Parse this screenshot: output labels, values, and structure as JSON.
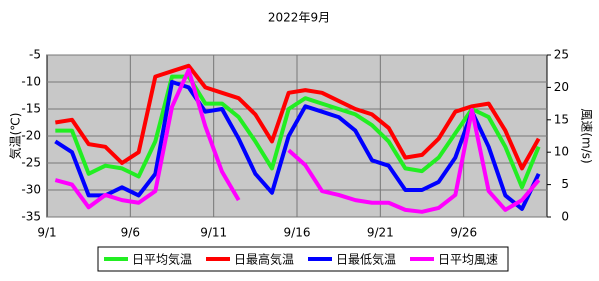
{
  "chart_data": {
    "type": "line",
    "title": "2022年9月",
    "y_label": "気温(℃)",
    "y2_label": "風速(m/s)",
    "categories": [
      "9/1",
      null,
      null,
      null,
      null,
      "9/6",
      null,
      null,
      null,
      null,
      "9/11",
      null,
      null,
      null,
      null,
      "9/16",
      null,
      null,
      null,
      null,
      "9/21",
      null,
      null,
      null,
      null,
      "9/26",
      null,
      null,
      null,
      null
    ],
    "ylim": [
      -35,
      -5
    ],
    "yticks": [
      -35,
      -30,
      -25,
      -20,
      -15,
      -10,
      -5
    ],
    "y2lim": [
      0,
      25
    ],
    "y2ticks": [
      0,
      5,
      10,
      15,
      20,
      25
    ],
    "grid": true,
    "series": [
      {
        "name": "日平均気温",
        "color": "#22ee22",
        "values": [
          -19,
          -19,
          -27,
          -25.5,
          -26,
          -27.5,
          -21,
          -9,
          -9,
          -14,
          -14,
          -16.5,
          -21,
          -26,
          -15,
          -13,
          -14,
          -15,
          -16,
          -18,
          -21,
          -26,
          -26.5,
          -24,
          -19.5,
          -15,
          -16.5,
          -22,
          -29.5,
          -22
        ]
      },
      {
        "name": "日最高気温",
        "color": "#ff0000",
        "values": [
          -17.5,
          -17,
          -21.5,
          -22,
          -25,
          -23,
          -9,
          -8,
          -7,
          -11,
          -12,
          -13,
          -16,
          -21,
          -12,
          -11.5,
          -12,
          -13.5,
          -15,
          -16,
          -18.5,
          -24,
          -23.5,
          -20.5,
          -15.5,
          -14.5,
          -14,
          -19,
          -26,
          -20.5
        ]
      },
      {
        "name": "日最低気温",
        "color": "#0000ff",
        "values": [
          -21,
          -23,
          -31,
          -31,
          -29.5,
          -31,
          -27,
          -10,
          -11,
          -15.5,
          -15,
          -20.5,
          -27,
          -30.5,
          -20,
          -14.5,
          -15.5,
          -16.5,
          -19,
          -24.5,
          -25.5,
          -30,
          -30,
          -28.5,
          -24,
          -15.5,
          -22,
          -31,
          -33.5,
          -27
        ]
      },
      {
        "name": "日平均風速",
        "color": "#ff00ff",
        "axis": "y2",
        "values": [
          5.7,
          5,
          1.5,
          3.4,
          2.6,
          2.2,
          4,
          17,
          22.7,
          14,
          7,
          2.6,
          null,
          null,
          10.3,
          8,
          4,
          3.4,
          2.6,
          2.2,
          2.2,
          1.1,
          0.8,
          1.4,
          3.4,
          16.5,
          4,
          1.1,
          2.6,
          5.7
        ]
      }
    ]
  }
}
